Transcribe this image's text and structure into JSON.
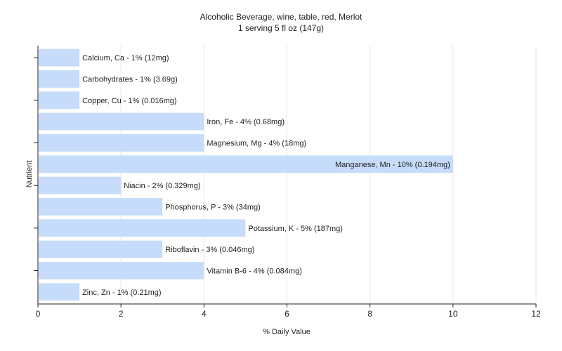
{
  "chart_data": {
    "type": "bar",
    "orientation": "horizontal",
    "title": "Alcoholic Beverage, wine, table, red, Merlot",
    "subtitle": "1 serving 5 fl oz (147g)",
    "xlabel": "% Daily Value",
    "ylabel": "Nutrient",
    "xlim": [
      0,
      12
    ],
    "xticks": [
      "0",
      "2",
      "4",
      "6",
      "8",
      "10",
      "12"
    ],
    "grid": true,
    "bar_color": "#c6dcfa",
    "categories": [
      "Calcium, Ca",
      "Carbohydrates",
      "Copper, Cu",
      "Iron, Fe",
      "Magnesium, Mg",
      "Manganese, Mn",
      "Niacin",
      "Phosphorus, P",
      "Potassium, K",
      "Riboflavin",
      "Vitamin B-6",
      "Zinc, Zn"
    ],
    "values": [
      1,
      1,
      1,
      4,
      4,
      10,
      2,
      3,
      5,
      3,
      4,
      1
    ],
    "labels": [
      "Calcium, Ca - 1% (12mg)",
      "Carbohydrates - 1% (3.69g)",
      "Copper, Cu - 1% (0.016mg)",
      "Iron, Fe - 4% (0.68mg)",
      "Magnesium, Mg - 4% (18mg)",
      "Manganese, Mn - 10% (0.194mg)",
      "Niacin - 2% (0.329mg)",
      "Phosphorus, P - 3% (34mg)",
      "Potassium, K - 5% (187mg)",
      "Riboflavin - 3% (0.046mg)",
      "Vitamin B-6 - 4% (0.084mg)",
      "Zinc, Zn - 1% (0.21mg)"
    ]
  }
}
